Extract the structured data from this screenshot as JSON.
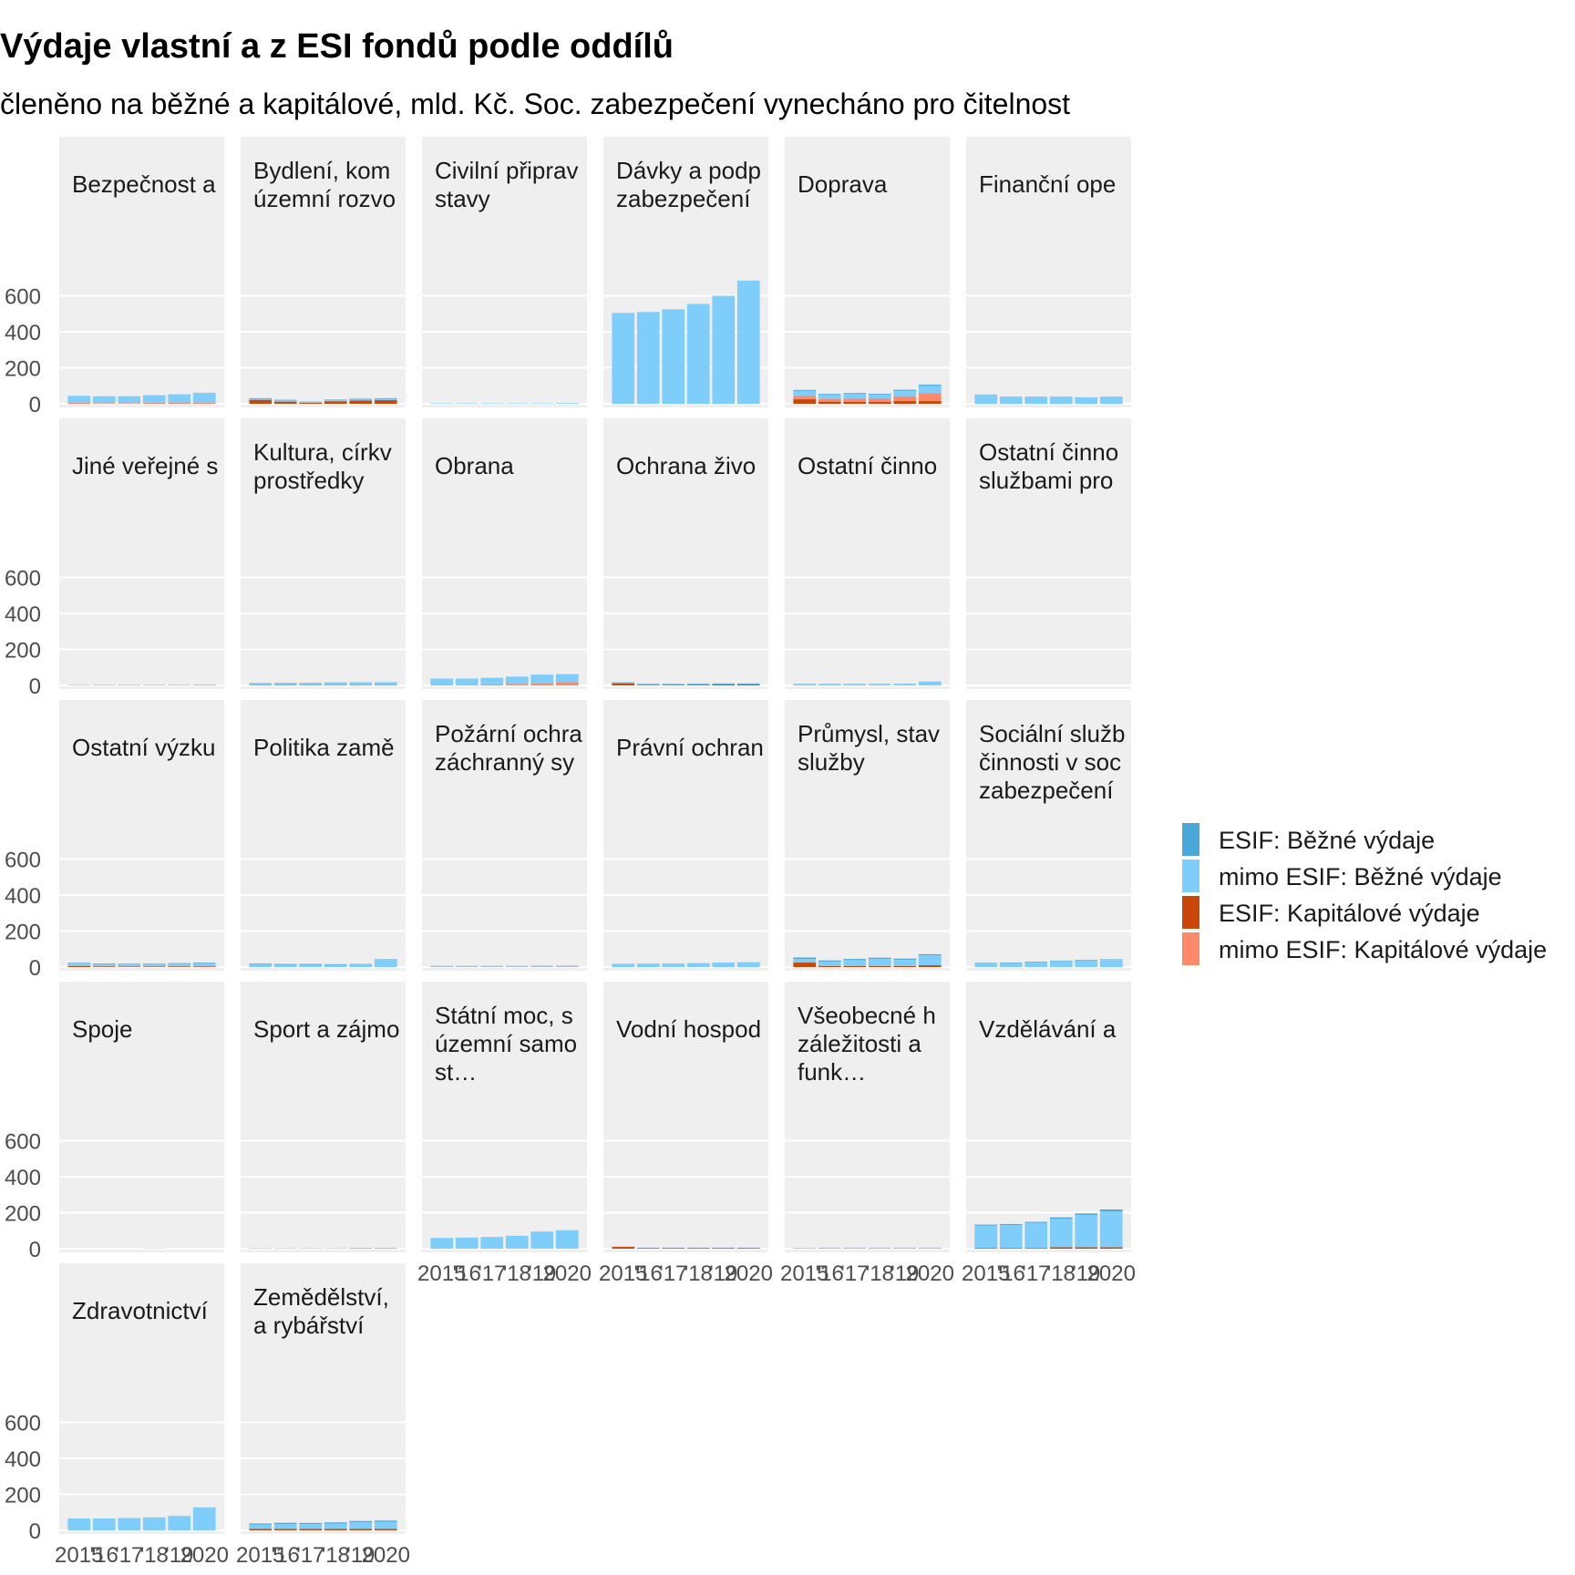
{
  "title": "Výdaje vlastní a z ESI fondů podle oddílů",
  "subtitle": "členěno na běžné a kapitálové, mld. Kč. Soc. zabezpečení vynecháno pro čitelnost",
  "colors": {
    "esif_bezne": "#4aa8d8",
    "mimo_bezne": "#7fcdfb",
    "esif_kapital": "#c94709",
    "mimo_kapital": "#fc8a6a",
    "panel_bg": "#efefef",
    "grid": "#ffffff"
  },
  "chart_data": {
    "type": "bar",
    "stacked": true,
    "faceted": true,
    "x_tick_labels": [
      "2015",
      "'16",
      "'17",
      "'18",
      "'19",
      "2020"
    ],
    "y_ticks": [
      0,
      200,
      400,
      600
    ],
    "ylim": [
      0,
      770
    ],
    "grid": true,
    "legend_position": "right",
    "series": [
      {
        "key": "esif_bezne",
        "name": "ESIF: Běžné výdaje"
      },
      {
        "key": "mimo_bezne",
        "name": "mimo ESIF: Běžné výdaje"
      },
      {
        "key": "esif_kapital",
        "name": "ESIF: Kapitálové výdaje"
      },
      {
        "key": "mimo_kapital",
        "name": "mimo ESIF: Kapitálové výdaje"
      }
    ],
    "panels": [
      {
        "title": [
          "Bezpečnost a"
        ],
        "esif_bezne": [
          0,
          0,
          0,
          0,
          0,
          0
        ],
        "mimo_bezne": [
          38,
          38,
          38,
          42,
          46,
          55
        ],
        "esif_kapital": [
          0,
          0,
          0,
          0,
          0,
          0
        ],
        "mimo_kapital": [
          6,
          4,
          4,
          6,
          7,
          6
        ]
      },
      {
        "title": [
          "Bydlení, kom",
          "územní rozvo"
        ],
        "esif_bezne": [
          3,
          3,
          2,
          3,
          3,
          3
        ],
        "mimo_bezne": [
          6,
          7,
          5,
          6,
          7,
          8
        ],
        "esif_kapital": [
          22,
          12,
          5,
          14,
          18,
          20
        ],
        "mimo_kapital": [
          0,
          0,
          0,
          0,
          0,
          0
        ]
      },
      {
        "title": [
          "Civilní připrav",
          "stavy"
        ],
        "esif_bezne": [
          0,
          0,
          0,
          0,
          0,
          0
        ],
        "mimo_bezne": [
          3,
          3,
          3,
          3,
          3,
          4
        ],
        "esif_kapital": [
          0,
          0,
          0,
          0,
          0,
          0
        ],
        "mimo_kapital": [
          0,
          0,
          0,
          0,
          0,
          0
        ]
      },
      {
        "title": [
          "Dávky a podp",
          "zabezpečení"
        ],
        "esif_bezne": [
          0,
          0,
          0,
          0,
          0,
          0
        ],
        "mimo_bezne": [
          505,
          510,
          525,
          555,
          600,
          685
        ],
        "esif_kapital": [
          0,
          0,
          0,
          0,
          0,
          0
        ],
        "mimo_kapital": [
          0,
          0,
          0,
          0,
          0,
          0
        ]
      },
      {
        "title": [
          "Doprava"
        ],
        "esif_bezne": [
          4,
          4,
          4,
          4,
          5,
          6
        ],
        "mimo_bezne": [
          30,
          24,
          28,
          24,
          31,
          40
        ],
        "esif_kapital": [
          25,
          12,
          10,
          10,
          15,
          15
        ],
        "mimo_kapital": [
          18,
          15,
          18,
          18,
          27,
          45
        ]
      },
      {
        "title": [
          "Finanční ope"
        ],
        "esif_bezne": [
          0,
          0,
          0,
          0,
          0,
          0
        ],
        "mimo_bezne": [
          52,
          40,
          40,
          40,
          36,
          40
        ],
        "esif_kapital": [
          0,
          0,
          0,
          0,
          0,
          0
        ],
        "mimo_kapital": [
          0,
          0,
          0,
          0,
          0,
          0
        ]
      },
      {
        "title": [
          "Jiné veřejné s"
        ],
        "esif_bezne": [
          0,
          0,
          0,
          0,
          0,
          0
        ],
        "mimo_bezne": [
          3,
          4,
          4,
          4,
          4,
          5
        ],
        "esif_kapital": [
          0,
          0,
          0,
          0,
          0,
          0
        ],
        "mimo_kapital": [
          0,
          0,
          0,
          0,
          0,
          0
        ]
      },
      {
        "title": [
          "Kultura, církv",
          "prostředky"
        ],
        "esif_bezne": [
          0,
          0,
          0,
          0,
          0,
          0
        ],
        "mimo_bezne": [
          10,
          11,
          11,
          13,
          14,
          14
        ],
        "esif_kapital": [
          2,
          2,
          2,
          2,
          2,
          2
        ],
        "mimo_kapital": [
          2,
          2,
          2,
          2,
          2,
          2
        ]
      },
      {
        "title": [
          "Obrana"
        ],
        "esif_bezne": [
          0,
          0,
          0,
          0,
          0,
          0
        ],
        "mimo_bezne": [
          35,
          34,
          36,
          40,
          48,
          45
        ],
        "esif_kapital": [
          0,
          0,
          0,
          0,
          0,
          0
        ],
        "mimo_kapital": [
          3,
          4,
          6,
          9,
          12,
          18
        ]
      },
      {
        "title": [
          "Ochrana živo"
        ],
        "esif_bezne": [
          3,
          3,
          3,
          3,
          3,
          3
        ],
        "mimo_bezne": [
          2,
          2,
          2,
          3,
          3,
          3
        ],
        "esif_kapital": [
          12,
          3,
          3,
          4,
          5,
          5
        ],
        "mimo_kapital": [
          0,
          0,
          0,
          0,
          0,
          0
        ]
      },
      {
        "title": [
          "Ostatní činno"
        ],
        "esif_bezne": [
          0,
          0,
          0,
          0,
          0,
          0
        ],
        "mimo_bezne": [
          9,
          9,
          9,
          9,
          10,
          22
        ],
        "esif_kapital": [
          0,
          0,
          0,
          0,
          0,
          0
        ],
        "mimo_kapital": [
          0,
          0,
          0,
          0,
          0,
          0
        ]
      },
      {
        "title": [
          "Ostatní činno",
          "službami pro"
        ],
        "esif_bezne": [
          0,
          0,
          0,
          0,
          0,
          0
        ],
        "mimo_bezne": [
          0,
          0,
          0,
          0,
          0,
          0
        ],
        "esif_kapital": [
          0,
          0,
          0,
          0,
          0,
          0
        ],
        "mimo_kapital": [
          0,
          0,
          0,
          0,
          0,
          0
        ]
      },
      {
        "title": [
          "Ostatní výzku"
        ],
        "esif_bezne": [
          3,
          3,
          3,
          3,
          3,
          3
        ],
        "mimo_bezne": [
          15,
          13,
          13,
          13,
          15,
          18
        ],
        "esif_kapital": [
          6,
          4,
          3,
          3,
          4,
          4
        ],
        "mimo_kapital": [
          0,
          0,
          0,
          0,
          0,
          0
        ]
      },
      {
        "title": [
          "Politika zamě"
        ],
        "esif_bezne": [
          4,
          4,
          4,
          3,
          3,
          3
        ],
        "mimo_bezne": [
          15,
          13,
          13,
          13,
          14,
          40
        ],
        "esif_kapital": [
          0,
          0,
          0,
          0,
          0,
          0
        ],
        "mimo_kapital": [
          0,
          0,
          0,
          0,
          0,
          0
        ]
      },
      {
        "title": [
          "Požární ochra",
          "záchranný sy"
        ],
        "esif_bezne": [
          0,
          0,
          0,
          0,
          0,
          0
        ],
        "mimo_bezne": [
          5,
          5,
          5,
          5,
          6,
          6
        ],
        "esif_kapital": [
          1,
          1,
          1,
          1,
          1,
          1
        ],
        "mimo_kapital": [
          1,
          1,
          1,
          1,
          1,
          1
        ]
      },
      {
        "title": [
          "Právní ochran"
        ],
        "esif_bezne": [
          0,
          0,
          0,
          0,
          0,
          0
        ],
        "mimo_bezne": [
          18,
          19,
          20,
          22,
          25,
          27
        ],
        "esif_kapital": [
          0,
          0,
          0,
          0,
          0,
          0
        ],
        "mimo_kapital": [
          0,
          0,
          0,
          0,
          0,
          0
        ]
      },
      {
        "title": [
          "Průmysl, stav",
          "služby"
        ],
        "esif_bezne": [
          8,
          6,
          6,
          6,
          6,
          6
        ],
        "mimo_bezne": [
          20,
          25,
          33,
          40,
          35,
          55
        ],
        "esif_kapital": [
          25,
          6,
          6,
          6,
          6,
          10
        ],
        "mimo_kapital": [
          0,
          0,
          0,
          0,
          0,
          0
        ]
      },
      {
        "title": [
          "Sociální služb",
          "činnosti v soc",
          "zabezpečení"
        ],
        "esif_bezne": [
          3,
          3,
          3,
          3,
          3,
          3
        ],
        "mimo_bezne": [
          20,
          22,
          27,
          32,
          37,
          40
        ],
        "esif_kapital": [
          0,
          0,
          0,
          0,
          0,
          0
        ],
        "mimo_kapital": [
          0,
          0,
          0,
          0,
          0,
          0
        ]
      },
      {
        "title": [
          "Spoje"
        ],
        "esif_bezne": [
          0,
          0,
          0,
          0,
          0,
          0
        ],
        "mimo_bezne": [
          0,
          0,
          0,
          2,
          0,
          0
        ],
        "esif_kapital": [
          0,
          0,
          0,
          0,
          0,
          0
        ],
        "mimo_kapital": [
          0,
          0,
          0,
          0,
          0,
          0
        ]
      },
      {
        "title": [
          "Sport a zájmo"
        ],
        "esif_bezne": [
          0,
          0,
          0,
          0,
          0,
          0
        ],
        "mimo_bezne": [
          3,
          3,
          3,
          3,
          5,
          5
        ],
        "esif_kapital": [
          0,
          0,
          0,
          0,
          0,
          0
        ],
        "mimo_kapital": [
          0,
          0,
          0,
          0,
          0,
          0
        ]
      },
      {
        "title": [
          "Státní moc, s",
          "územní samo",
          "st…"
        ],
        "esif_bezne": [
          0,
          0,
          0,
          0,
          0,
          0
        ],
        "mimo_bezne": [
          60,
          62,
          65,
          72,
          95,
          103
        ],
        "esif_kapital": [
          0,
          0,
          0,
          0,
          0,
          0
        ],
        "mimo_kapital": [
          0,
          0,
          0,
          0,
          0,
          0
        ]
      },
      {
        "title": [
          "Vodní hospod"
        ],
        "esif_bezne": [
          0,
          0,
          0,
          0,
          0,
          0
        ],
        "mimo_bezne": [
          2,
          2,
          2,
          2,
          2,
          2
        ],
        "esif_kapital": [
          10,
          4,
          4,
          4,
          4,
          4
        ],
        "mimo_kapital": [
          0,
          0,
          0,
          0,
          0,
          0
        ]
      },
      {
        "title": [
          "Všeobecné h",
          "záležitosti a",
          "funk…"
        ],
        "esif_bezne": [
          0,
          0,
          0,
          0,
          0,
          0
        ],
        "mimo_bezne": [
          4,
          6,
          6,
          6,
          6,
          6
        ],
        "esif_kapital": [
          0,
          0,
          0,
          0,
          0,
          0
        ],
        "mimo_kapital": [
          0,
          0,
          0,
          0,
          0,
          0
        ]
      },
      {
        "title": [
          "Vzdělávání a"
        ],
        "esif_bezne": [
          5,
          5,
          5,
          8,
          8,
          10
        ],
        "mimo_bezne": [
          125,
          128,
          140,
          158,
          180,
          200
        ],
        "esif_kapital": [
          4,
          4,
          4,
          8,
          8,
          8
        ],
        "mimo_kapital": [
          0,
          0,
          0,
          0,
          0,
          0
        ]
      },
      {
        "title": [
          "Zdravotnictví"
        ],
        "esif_bezne": [
          0,
          0,
          0,
          0,
          0,
          0
        ],
        "mimo_bezne": [
          66,
          66,
          68,
          72,
          80,
          128
        ],
        "esif_kapital": [
          0,
          0,
          0,
          0,
          0,
          0
        ],
        "mimo_kapital": [
          0,
          0,
          0,
          0,
          0,
          0
        ]
      },
      {
        "title": [
          "Zemědělství,",
          "a rybářství"
        ],
        "esif_bezne": [
          6,
          6,
          6,
          6,
          6,
          6
        ],
        "mimo_bezne": [
          24,
          28,
          27,
          30,
          38,
          40
        ],
        "esif_kapital": [
          8,
          8,
          8,
          8,
          8,
          8
        ],
        "mimo_kapital": [
          0,
          0,
          0,
          0,
          0,
          0
        ]
      }
    ]
  }
}
